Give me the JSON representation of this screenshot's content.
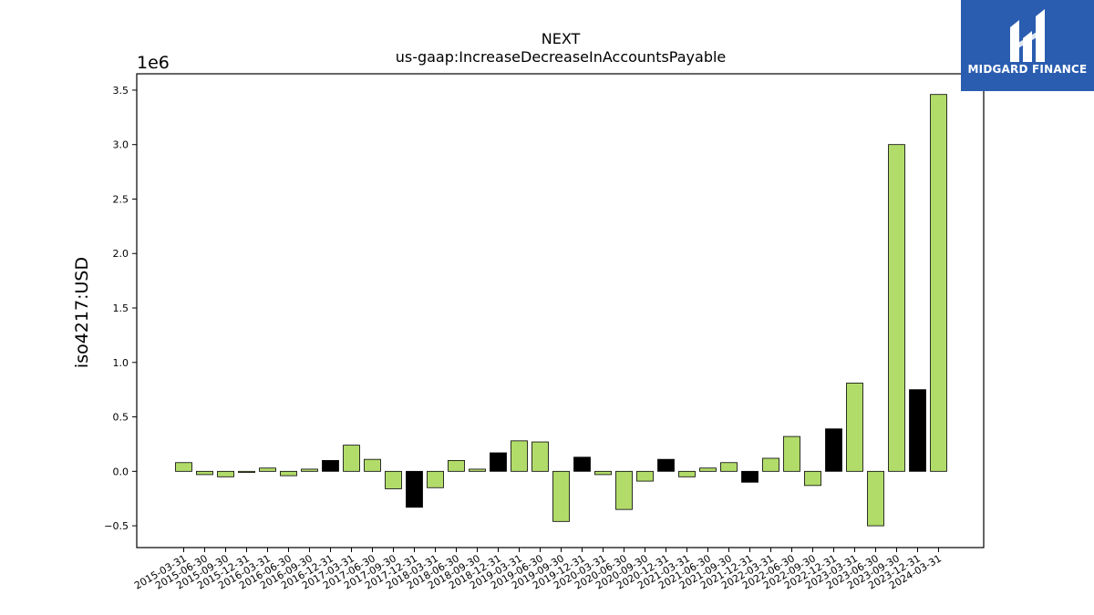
{
  "chart_data": {
    "type": "bar",
    "title": "NEXT",
    "subtitle": "us-gaap:IncreaseDecreaseInAccountsPayable",
    "xlabel": "",
    "ylabel": "iso4217:USD",
    "y_offset_label": "1e6",
    "ylim": [
      -0.7,
      3.65
    ],
    "yticks": [
      -0.5,
      0.0,
      0.5,
      1.0,
      1.5,
      2.0,
      2.5,
      3.0,
      3.5
    ],
    "ytick_labels": [
      "−0.5",
      "0.0",
      "0.5",
      "1.0",
      "1.5",
      "2.0",
      "2.5",
      "3.0",
      "3.5"
    ],
    "grid": false,
    "colors": {
      "positive_default": "#b2dc6a",
      "highlight": "#000000",
      "edge": "#000000"
    },
    "categories": [
      "2015-03-31",
      "2015-06-30",
      "2015-09-30",
      "2015-12-31",
      "2016-03-31",
      "2016-06-30",
      "2016-09-30",
      "2016-12-31",
      "2017-03-31",
      "2017-06-30",
      "2017-09-30",
      "2017-12-31",
      "2018-03-31",
      "2018-06-30",
      "2018-09-30",
      "2018-12-31",
      "2019-03-31",
      "2019-06-30",
      "2019-09-30",
      "2019-12-31",
      "2020-03-31",
      "2020-06-30",
      "2020-09-30",
      "2020-12-31",
      "2021-03-31",
      "2021-06-30",
      "2021-09-30",
      "2021-12-31",
      "2022-03-31",
      "2022-06-30",
      "2022-09-30",
      "2022-12-31",
      "2023-03-31",
      "2023-06-30",
      "2023-09-30",
      "2023-12-31",
      "2024-03-31"
    ],
    "values": [
      0.08,
      -0.03,
      -0.05,
      -0.01,
      0.03,
      -0.04,
      0.02,
      0.1,
      0.24,
      0.11,
      -0.16,
      -0.33,
      -0.15,
      0.1,
      0.02,
      0.17,
      0.28,
      0.27,
      -0.46,
      0.13,
      -0.03,
      -0.35,
      -0.09,
      0.11,
      -0.05,
      0.03,
      0.08,
      -0.1,
      0.12,
      0.32,
      -0.13,
      0.39,
      0.81,
      -0.5,
      3.0,
      0.75,
      3.46
    ],
    "highlight": [
      false,
      false,
      false,
      false,
      false,
      false,
      false,
      true,
      false,
      false,
      false,
      true,
      false,
      false,
      false,
      true,
      false,
      false,
      false,
      true,
      false,
      false,
      false,
      true,
      false,
      false,
      false,
      true,
      false,
      false,
      false,
      true,
      false,
      false,
      false,
      true,
      false
    ]
  },
  "branding": {
    "name": "MIDGARD FINANCE"
  }
}
